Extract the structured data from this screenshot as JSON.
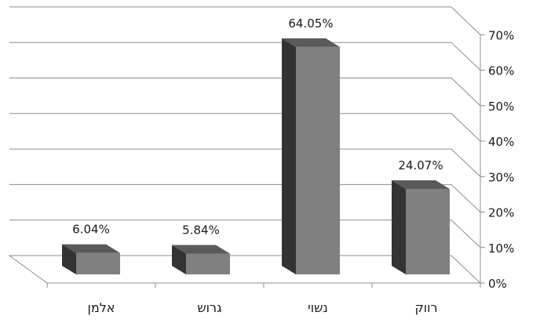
{
  "chart_data": {
    "type": "bar",
    "categories": [
      "אלמן",
      "גרוש",
      "נשוי",
      "רווק"
    ],
    "values": [
      6.04,
      5.84,
      64.05,
      24.07
    ],
    "data_labels": [
      "6.04%",
      "5.84%",
      "64.05%",
      "24.07%"
    ],
    "y_ticks": [
      "0%",
      "10%",
      "20%",
      "30%",
      "40%",
      "50%",
      "60%",
      "70%"
    ],
    "ylim": [
      0,
      70
    ],
    "grid": true,
    "style": "3d",
    "colors": {
      "bar_front": "#808080",
      "bar_side": "#333333",
      "bar_top": "#5a5a5a",
      "grid": "#8c8c8c"
    }
  }
}
